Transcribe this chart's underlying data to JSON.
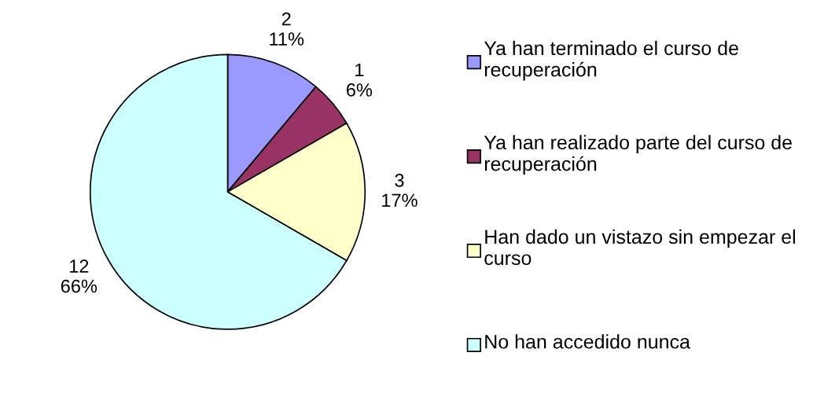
{
  "chart_data": {
    "type": "pie",
    "categories": [
      "Ya han terminado el curso de recuperación",
      "Ya han realizado parte del curso de recuperación",
      "Han dado un vistazo sin empezar el curso",
      "No han accedido nunca"
    ],
    "values": [
      2,
      1,
      3,
      12
    ],
    "colors": [
      "#9999ff",
      "#993366",
      "#ffffcc",
      "#ccffff"
    ],
    "value_labels": [
      "2\n11%",
      "1\n6%",
      "3\n17%",
      "12\n66%"
    ],
    "legend": "right"
  }
}
